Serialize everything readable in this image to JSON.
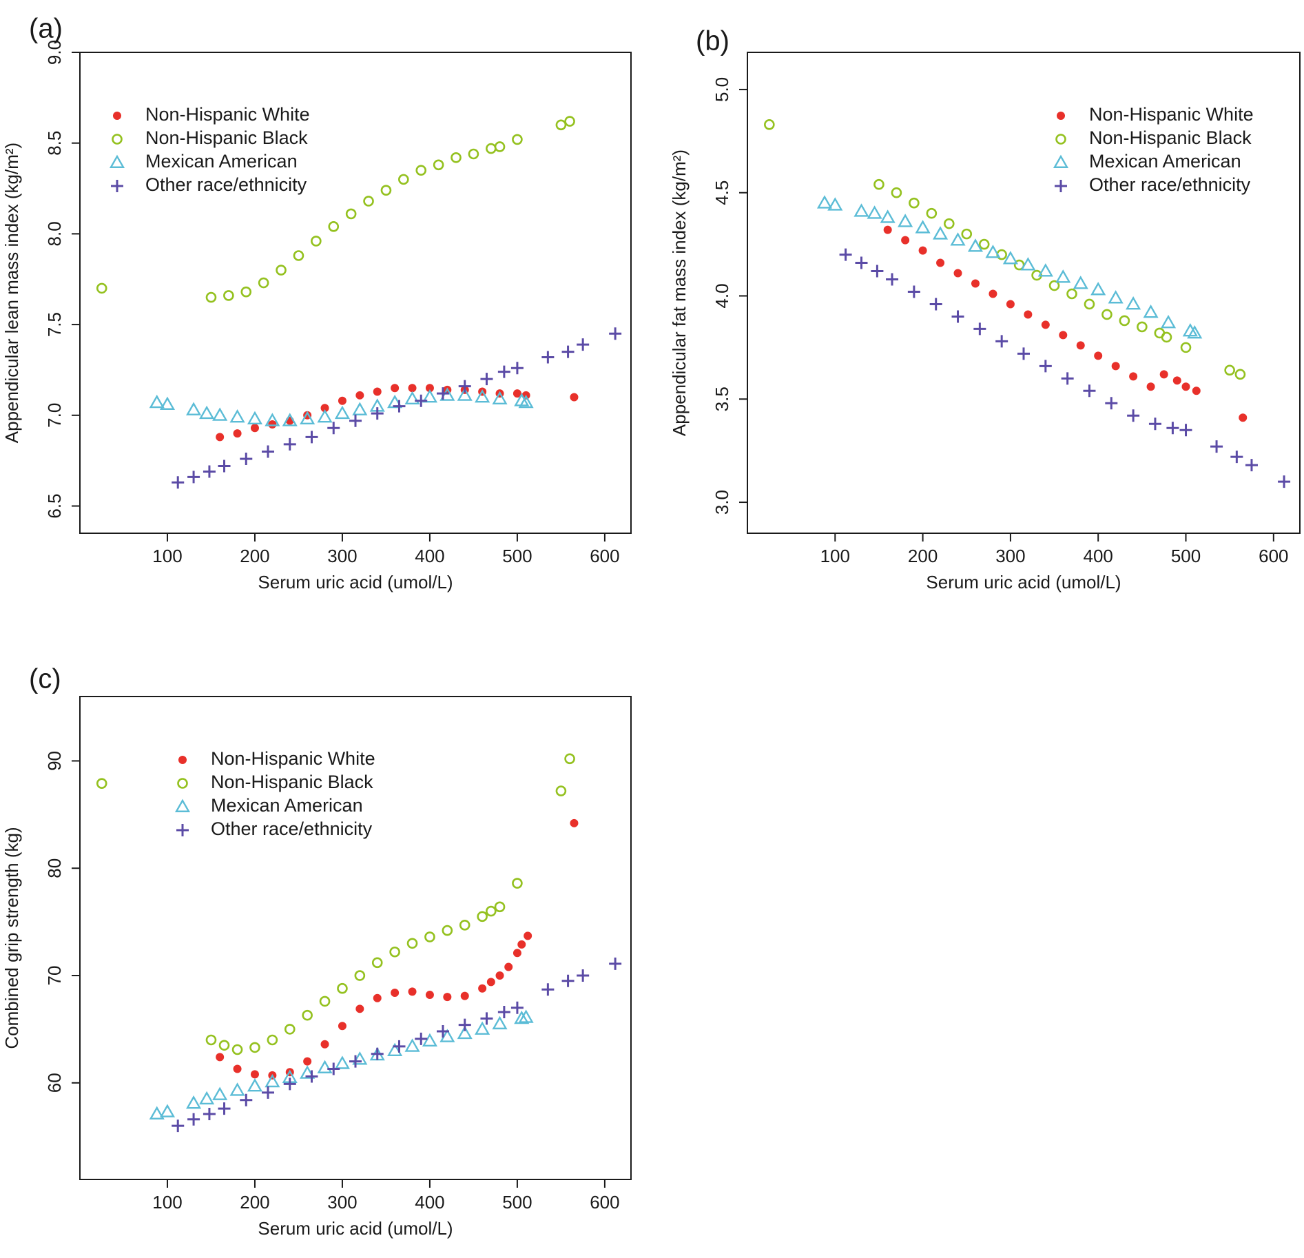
{
  "colors": {
    "white": "#e8302a",
    "black": "#94c11f",
    "mexican": "#5bbcd6",
    "other": "#5b4ba6",
    "axis": "#1a1a1a"
  },
  "legend": [
    {
      "key": "white",
      "label": "Non-Hispanic White",
      "marker": "dot"
    },
    {
      "key": "black",
      "label": "Non-Hispanic Black",
      "marker": "circle"
    },
    {
      "key": "mexican",
      "label": "Mexican American",
      "marker": "triangle"
    },
    {
      "key": "other",
      "label": "Other race/ethnicity",
      "marker": "plus"
    }
  ],
  "chart_data": [
    {
      "panel": "(a)",
      "type": "scatter",
      "xlabel": "Serum uric acid (umol/L)",
      "ylabel": "Appendicular lean mass index (kg/m²)",
      "xlim": [
        0,
        630
      ],
      "ylim": [
        6.35,
        9.0
      ],
      "xticks": [
        100,
        200,
        300,
        400,
        500,
        600
      ],
      "yticks": [
        "6.5",
        "7.0",
        "7.5",
        "8.0",
        "8.5",
        "9.0"
      ],
      "legend_position": "top-left",
      "series": [
        {
          "key": "white",
          "name": "Non-Hispanic White",
          "marker": "dot",
          "x": [
            160,
            180,
            200,
            220,
            240,
            260,
            280,
            300,
            320,
            340,
            360,
            380,
            400,
            420,
            440,
            460,
            480,
            500,
            510,
            565
          ],
          "y": [
            6.88,
            6.9,
            6.93,
            6.95,
            6.97,
            7.0,
            7.04,
            7.08,
            7.11,
            7.13,
            7.15,
            7.15,
            7.15,
            7.14,
            7.14,
            7.13,
            7.12,
            7.12,
            7.11,
            7.1
          ]
        },
        {
          "key": "black",
          "name": "Non-Hispanic Black",
          "marker": "circle",
          "x": [
            25,
            150,
            170,
            190,
            210,
            230,
            250,
            270,
            290,
            310,
            330,
            350,
            370,
            390,
            410,
            430,
            450,
            470,
            480,
            500,
            550,
            560
          ],
          "y": [
            7.7,
            7.65,
            7.66,
            7.68,
            7.73,
            7.8,
            7.88,
            7.96,
            8.04,
            8.11,
            8.18,
            8.24,
            8.3,
            8.35,
            8.38,
            8.42,
            8.44,
            8.47,
            8.48,
            8.52,
            8.6,
            8.62
          ]
        },
        {
          "key": "mexican",
          "name": "Mexican American",
          "marker": "triangle",
          "x": [
            88,
            100,
            130,
            145,
            160,
            180,
            200,
            220,
            240,
            260,
            280,
            300,
            320,
            340,
            360,
            380,
            400,
            420,
            440,
            460,
            480,
            505,
            510
          ],
          "y": [
            7.07,
            7.06,
            7.03,
            7.01,
            7.0,
            6.99,
            6.98,
            6.97,
            6.97,
            6.98,
            6.99,
            7.01,
            7.03,
            7.05,
            7.07,
            7.09,
            7.1,
            7.11,
            7.11,
            7.1,
            7.09,
            7.08,
            7.07
          ]
        },
        {
          "key": "other",
          "name": "Other race/ethnicity",
          "marker": "plus",
          "x": [
            112,
            130,
            148,
            165,
            190,
            215,
            240,
            265,
            290,
            315,
            340,
            365,
            390,
            415,
            440,
            465,
            485,
            500,
            535,
            558,
            575,
            612
          ],
          "y": [
            6.63,
            6.66,
            6.69,
            6.72,
            6.76,
            6.8,
            6.84,
            6.88,
            6.93,
            6.97,
            7.01,
            7.05,
            7.08,
            7.12,
            7.16,
            7.2,
            7.24,
            7.26,
            7.32,
            7.35,
            7.39,
            7.45
          ]
        }
      ]
    },
    {
      "panel": "(b)",
      "type": "scatter",
      "xlabel": "Serum uric acid (umol/L)",
      "ylabel": "Appendicular fat mass index (kg/m²)",
      "xlim": [
        0,
        630
      ],
      "ylim": [
        2.85,
        5.18
      ],
      "xticks": [
        100,
        200,
        300,
        400,
        500,
        600
      ],
      "yticks": [
        "3.0",
        "3.5",
        "4.0",
        "4.5",
        "5.0"
      ],
      "legend_position": "top-right",
      "series": [
        {
          "key": "white",
          "name": "Non-Hispanic White",
          "marker": "dot",
          "x": [
            160,
            180,
            200,
            220,
            240,
            260,
            280,
            300,
            320,
            340,
            360,
            380,
            400,
            420,
            440,
            460,
            475,
            490,
            500,
            512,
            565
          ],
          "y": [
            4.32,
            4.27,
            4.22,
            4.16,
            4.11,
            4.06,
            4.01,
            3.96,
            3.91,
            3.86,
            3.81,
            3.76,
            3.71,
            3.66,
            3.61,
            3.56,
            3.62,
            3.59,
            3.56,
            3.54,
            3.41
          ]
        },
        {
          "key": "black",
          "name": "Non-Hispanic Black",
          "marker": "circle",
          "x": [
            25,
            150,
            170,
            190,
            210,
            230,
            250,
            270,
            290,
            310,
            330,
            350,
            370,
            390,
            410,
            430,
            450,
            470,
            478,
            500,
            550,
            562
          ],
          "y": [
            4.83,
            4.54,
            4.5,
            4.45,
            4.4,
            4.35,
            4.3,
            4.25,
            4.2,
            4.15,
            4.1,
            4.05,
            4.01,
            3.96,
            3.91,
            3.88,
            3.85,
            3.82,
            3.8,
            3.75,
            3.64,
            3.62
          ]
        },
        {
          "key": "mexican",
          "name": "Mexican American",
          "marker": "triangle",
          "x": [
            88,
            100,
            130,
            145,
            160,
            180,
            200,
            220,
            240,
            260,
            280,
            300,
            320,
            340,
            360,
            380,
            400,
            420,
            440,
            460,
            480,
            505,
            510
          ],
          "y": [
            4.45,
            4.44,
            4.41,
            4.4,
            4.38,
            4.36,
            4.33,
            4.3,
            4.27,
            4.24,
            4.21,
            4.18,
            4.15,
            4.12,
            4.09,
            4.06,
            4.03,
            3.99,
            3.96,
            3.92,
            3.87,
            3.83,
            3.82
          ]
        },
        {
          "key": "other",
          "name": "Other race/ethnicity",
          "marker": "plus",
          "x": [
            112,
            130,
            148,
            165,
            190,
            215,
            240,
            265,
            290,
            315,
            340,
            365,
            390,
            415,
            440,
            465,
            485,
            500,
            535,
            558,
            575,
            612
          ],
          "y": [
            4.2,
            4.16,
            4.12,
            4.08,
            4.02,
            3.96,
            3.9,
            3.84,
            3.78,
            3.72,
            3.66,
            3.6,
            3.54,
            3.48,
            3.42,
            3.38,
            3.36,
            3.35,
            3.27,
            3.22,
            3.18,
            3.1
          ]
        }
      ]
    },
    {
      "panel": "(c)",
      "type": "scatter",
      "xlabel": "Serum uric acid (umol/L)",
      "ylabel": "Combined grip strength (kg)",
      "xlim": [
        0,
        630
      ],
      "ylim": [
        51,
        96
      ],
      "xticks": [
        100,
        200,
        300,
        400,
        500,
        600
      ],
      "yticks": [
        "60",
        "70",
        "80",
        "90"
      ],
      "legend_position": "top-left",
      "series": [
        {
          "key": "white",
          "name": "Non-Hispanic White",
          "marker": "dot",
          "x": [
            160,
            180,
            200,
            220,
            240,
            260,
            280,
            300,
            320,
            340,
            360,
            380,
            400,
            420,
            440,
            460,
            470,
            480,
            490,
            500,
            505,
            512,
            565
          ],
          "y": [
            62.4,
            61.3,
            60.8,
            60.7,
            61.0,
            62.0,
            63.6,
            65.3,
            66.9,
            67.9,
            68.4,
            68.5,
            68.2,
            68.0,
            68.1,
            68.8,
            69.4,
            70.0,
            70.8,
            72.1,
            72.9,
            73.7,
            84.2
          ]
        },
        {
          "key": "black",
          "name": "Non-Hispanic Black",
          "marker": "circle",
          "x": [
            25,
            150,
            165,
            180,
            200,
            220,
            240,
            260,
            280,
            300,
            320,
            340,
            360,
            380,
            400,
            420,
            440,
            460,
            470,
            480,
            500,
            550,
            560
          ],
          "y": [
            87.9,
            64.0,
            63.5,
            63.1,
            63.3,
            64.0,
            65.0,
            66.3,
            67.6,
            68.8,
            70.0,
            71.2,
            72.2,
            73.0,
            73.6,
            74.2,
            74.7,
            75.5,
            76.0,
            76.4,
            78.6,
            87.2,
            90.2
          ]
        },
        {
          "key": "mexican",
          "name": "Mexican American",
          "marker": "triangle",
          "x": [
            88,
            100,
            130,
            145,
            160,
            180,
            200,
            220,
            240,
            260,
            280,
            300,
            320,
            340,
            360,
            380,
            400,
            420,
            440,
            460,
            480,
            505,
            510
          ],
          "y": [
            57.1,
            57.3,
            58.1,
            58.5,
            58.9,
            59.3,
            59.7,
            60.1,
            60.5,
            60.9,
            61.4,
            61.8,
            62.2,
            62.6,
            63.0,
            63.4,
            63.9,
            64.3,
            64.6,
            65.0,
            65.5,
            66.0,
            66.1
          ]
        },
        {
          "key": "other",
          "name": "Other race/ethnicity",
          "marker": "plus",
          "x": [
            112,
            130,
            148,
            165,
            190,
            215,
            240,
            265,
            290,
            315,
            340,
            365,
            390,
            415,
            440,
            465,
            485,
            500,
            535,
            558,
            575,
            612
          ],
          "y": [
            56.0,
            56.6,
            57.1,
            57.6,
            58.4,
            59.1,
            59.9,
            60.6,
            61.3,
            62.0,
            62.7,
            63.4,
            64.1,
            64.8,
            65.4,
            66.0,
            66.6,
            67.0,
            68.7,
            69.5,
            70.0,
            71.1
          ]
        }
      ]
    }
  ]
}
